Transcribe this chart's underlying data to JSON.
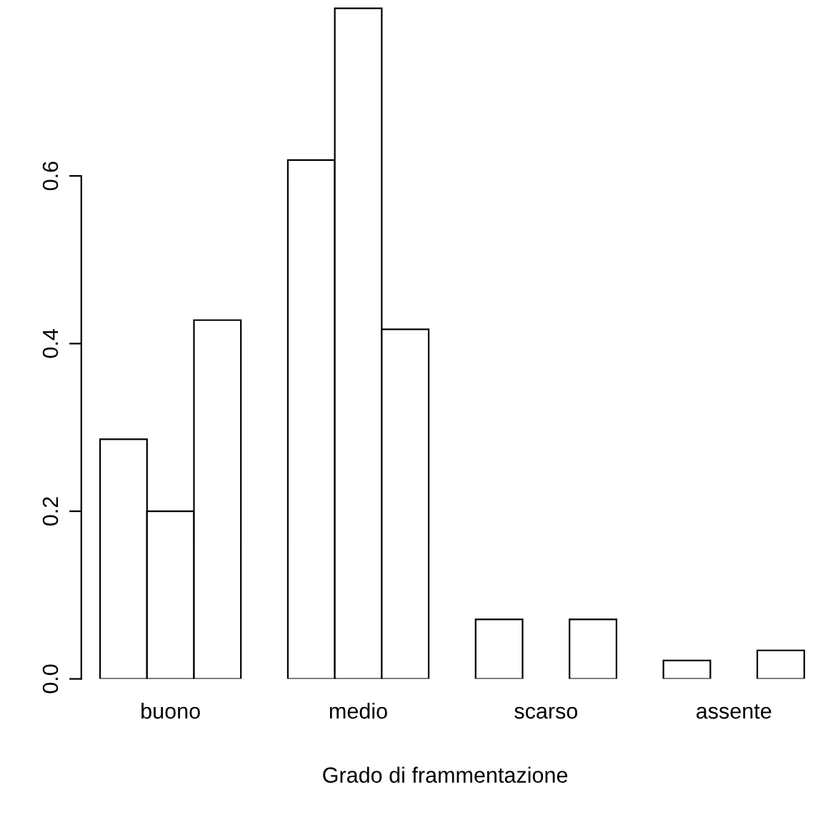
{
  "chart_data": {
    "type": "bar",
    "xlabel": "Grado di frammentazione",
    "categories": [
      "buono",
      "medio",
      "scarso",
      "assente"
    ],
    "series": [
      {
        "color": "#ffffff",
        "values": [
          0.286,
          0.619,
          0.071,
          0.022
        ]
      },
      {
        "color": "#ffffff",
        "values": [
          0.2,
          0.8,
          0,
          0
        ]
      },
      {
        "color": "#ffffff",
        "values": [
          0.428,
          0.417,
          0.071,
          0.034
        ]
      }
    ],
    "ylim": [
      0,
      0.805
    ],
    "yticks": [
      {
        "value": 0,
        "label": "0.0"
      },
      {
        "value": 0.2,
        "label": "0.2"
      },
      {
        "value": 0.4,
        "label": "0.4"
      },
      {
        "value": 0.6,
        "label": "0.6"
      }
    ],
    "grid": false,
    "legend": false
  }
}
